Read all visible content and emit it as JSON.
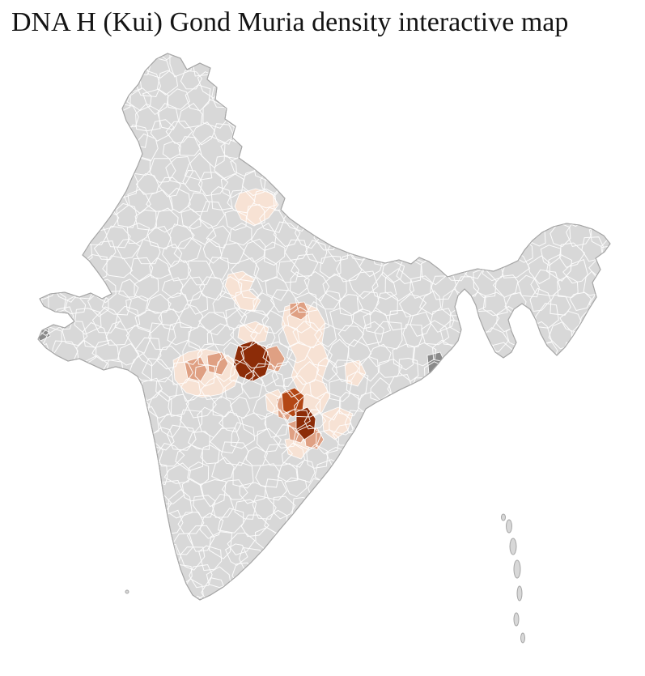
{
  "title": "DNA H (Kui) Gond Muria density interactive map",
  "map": {
    "name": "india-districts-density-choropleth",
    "colors": {
      "background": "#ffffff",
      "base": "#d8d8d8",
      "border": "#ffffff",
      "outline": "#a6a6a6",
      "density_low": "#f7e2d4",
      "density_mid": "#dfa083",
      "density_high": "#b34715",
      "density_max": "#8c2c08",
      "no_data": "#8a8a8a"
    }
  }
}
